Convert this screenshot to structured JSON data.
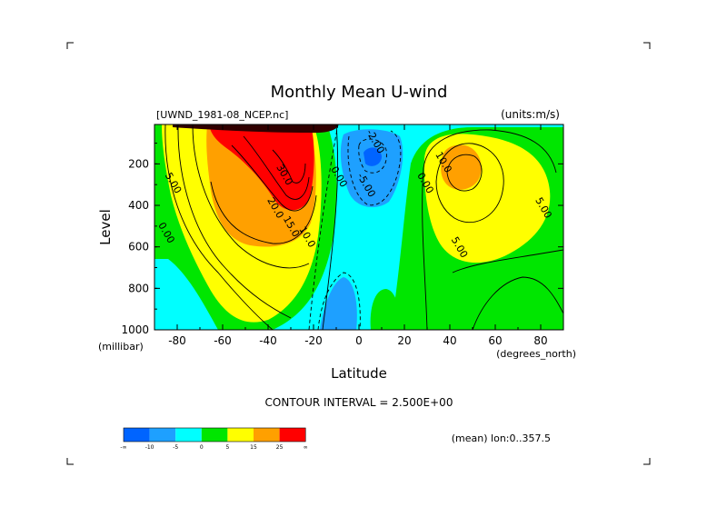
{
  "chart_data": {
    "type": "heatmap",
    "title": "Monthly Mean U-wind",
    "dataset_label": "[UWND_1981-08_NCEP.nc]",
    "units_label": "(units:m/s)",
    "xlabel": "Latitude",
    "ylabel": "Level",
    "x_unit_label": "(degrees_north)",
    "y_unit_label": "(millibar)",
    "xlim": [
      -90,
      90
    ],
    "ylim": [
      1000,
      10
    ],
    "x_ticks": [
      -80,
      -60,
      -40,
      -20,
      0,
      20,
      40,
      60,
      80
    ],
    "x_tick_labels": [
      "-80",
      "-60",
      "-40",
      "-20",
      "0",
      "20",
      "40",
      "60",
      "80"
    ],
    "y_ticks": [
      200,
      400,
      600,
      800,
      1000
    ],
    "y_tick_labels": [
      "200",
      "400",
      "600",
      "800",
      "1000"
    ],
    "contour_interval_text": "CONTOUR INTERVAL = 2.500E+00",
    "mean_text": "(mean) lon:0..357.5",
    "contour_labels": [
      {
        "text": "5.00",
        "lat": -83,
        "level": 300
      },
      {
        "text": "0.00",
        "lat": -86,
        "level": 540
      },
      {
        "text": "30.0",
        "lat": -34,
        "level": 260
      },
      {
        "text": "20.0",
        "lat": -38,
        "level": 420
      },
      {
        "text": "15.0",
        "lat": -31,
        "level": 510
      },
      {
        "text": "10.0",
        "lat": -24,
        "level": 560
      },
      {
        "text": "0.00",
        "lat": -10,
        "level": 270
      },
      {
        "text": "-5.00",
        "lat": 2,
        "level": 310
      },
      {
        "text": "-2.00",
        "lat": 6,
        "level": 100
      },
      {
        "text": "10.0",
        "lat": 36,
        "level": 200
      },
      {
        "text": "0.00",
        "lat": 28,
        "level": 300
      },
      {
        "text": "5.00",
        "lat": 43,
        "level": 610
      },
      {
        "text": "5.00",
        "lat": 80,
        "level": 420
      }
    ],
    "color_levels": [
      {
        "label": "-∞",
        "color": "#0064ff"
      },
      {
        "label": "-10",
        "color": "#1ea0ff"
      },
      {
        "label": "-5",
        "color": "#00ffff"
      },
      {
        "label": "0",
        "color": "#00e600"
      },
      {
        "label": "5",
        "color": "#ffff00"
      },
      {
        "label": "15",
        "color": "#ffa000"
      },
      {
        "label": "25",
        "color": "#ff0000"
      },
      {
        "label": "∞",
        "color": ""
      }
    ]
  }
}
